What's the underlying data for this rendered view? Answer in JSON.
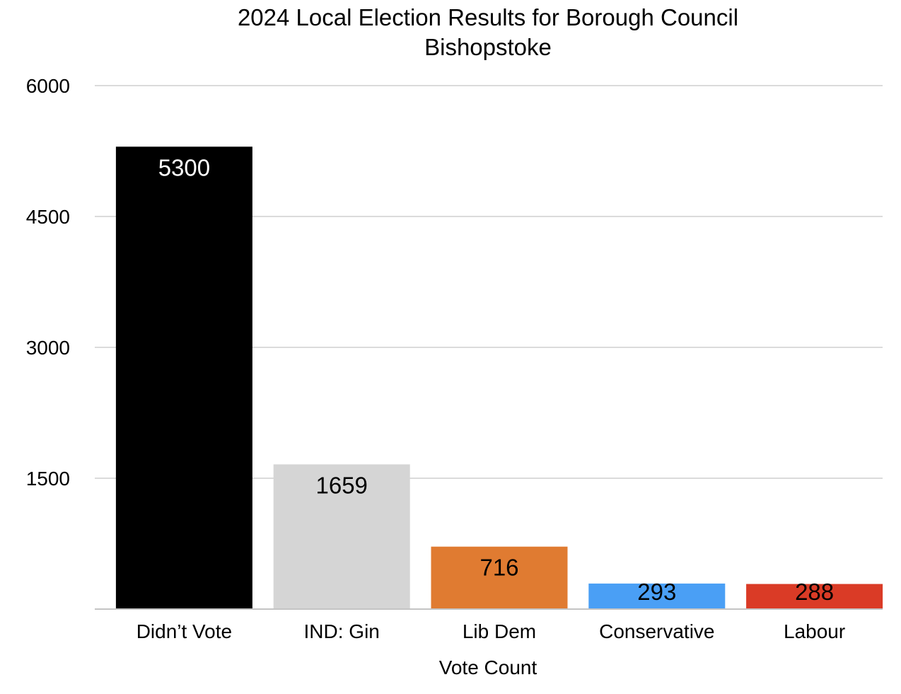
{
  "chart_data": {
    "type": "bar",
    "title": "2024 Local Election Results for Borough Council",
    "subtitle": "Bishopstoke",
    "xlabel": "Vote Count",
    "ylabel": "",
    "ylim": [
      0,
      6000
    ],
    "yticks": [
      1500,
      3000,
      4500,
      6000
    ],
    "grid": true,
    "categories": [
      "Didn’t Vote",
      "IND: Gin",
      "Lib Dem",
      "Conservative",
      "Labour"
    ],
    "values": [
      5300,
      1659,
      716,
      293,
      288
    ],
    "colors": [
      "#000000",
      "#d5d5d5",
      "#e07b31",
      "#4a9ff5",
      "#da3b26"
    ],
    "label_colors": [
      "#ffffff",
      "#000000",
      "#000000",
      "#000000",
      "#000000"
    ]
  }
}
